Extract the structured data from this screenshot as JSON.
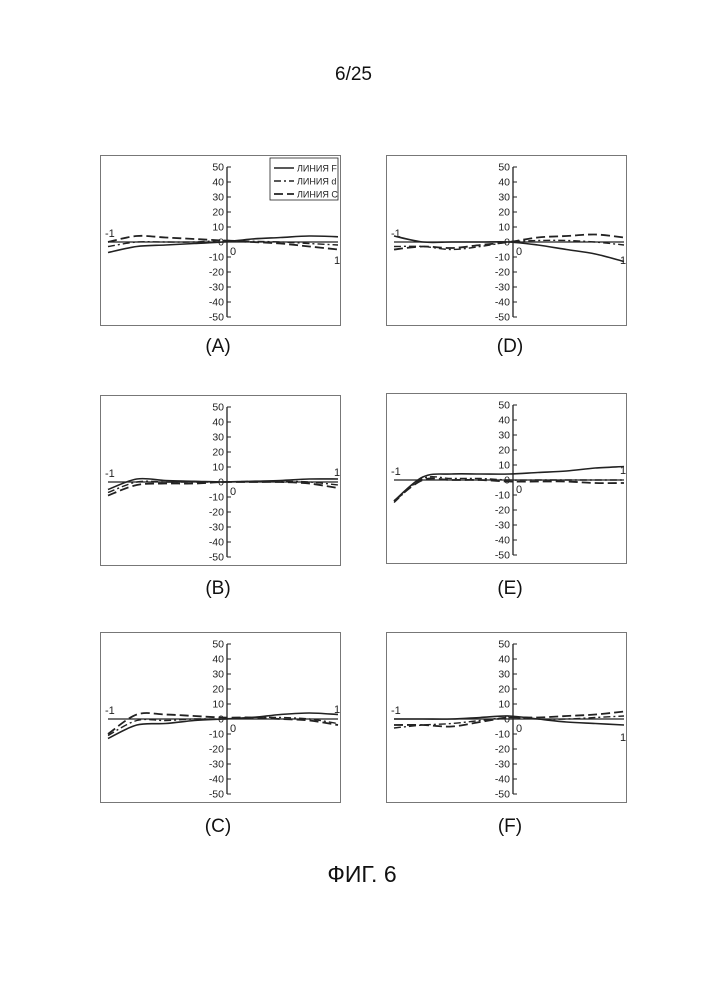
{
  "header": {
    "page_number": "6/25"
  },
  "figure": {
    "title": "ФИГ. 6"
  },
  "legend": [
    {
      "label": "ЛИНИЯ F",
      "style": "solid"
    },
    {
      "label": "ЛИНИЯ d",
      "style": "dashdot"
    },
    {
      "label": "ЛИНИЯ C",
      "style": "dashed"
    }
  ],
  "colors": {
    "ink": "#222222",
    "frame": "#777777",
    "paper": "#ffffff"
  },
  "chart_data": [
    {
      "panel": "A",
      "caption": "(A)",
      "type": "line",
      "xlim": [
        -1,
        1
      ],
      "ylim": [
        -50,
        50
      ],
      "y_ticks": [
        50,
        40,
        30,
        20,
        10,
        0,
        -10,
        -20,
        -30,
        -40,
        -50
      ],
      "x_tick_labels": [
        "-1",
        "0",
        "1"
      ],
      "legend_position": "top-right",
      "x": [
        -1,
        -0.75,
        -0.5,
        -0.25,
        0,
        0.25,
        0.5,
        0.75,
        1
      ],
      "series": [
        {
          "name": "ЛИНИЯ F",
          "values": [
            -7,
            -3,
            -2,
            -1,
            0,
            2,
            3,
            4,
            3.5
          ]
        },
        {
          "name": "ЛИНИЯ d",
          "values": [
            -3,
            0,
            0,
            0,
            1,
            0.5,
            0,
            -1,
            -2
          ]
        },
        {
          "name": "ЛИНИЯ C",
          "values": [
            0,
            4,
            3,
            2,
            1,
            0,
            -1,
            -3,
            -5
          ]
        }
      ]
    },
    {
      "panel": "D",
      "caption": "(D)",
      "type": "line",
      "xlim": [
        -1,
        1
      ],
      "ylim": [
        -50,
        50
      ],
      "y_ticks": [
        50,
        40,
        30,
        20,
        10,
        0,
        -10,
        -20,
        -30,
        -40,
        -50
      ],
      "x_tick_labels": [
        "-1",
        "0",
        "1"
      ],
      "x": [
        -1,
        -0.75,
        -0.5,
        -0.25,
        0,
        0.25,
        0.5,
        0.75,
        1
      ],
      "series": [
        {
          "name": "ЛИНИЯ F",
          "values": [
            4,
            0,
            0,
            0,
            0,
            -2,
            -5,
            -8,
            -13
          ]
        },
        {
          "name": "ЛИНИЯ d",
          "values": [
            -3,
            -3,
            -5,
            -3,
            0,
            1,
            1,
            0,
            -2
          ]
        },
        {
          "name": "ЛИНИЯ C",
          "values": [
            -5,
            -3,
            -4,
            -2,
            0,
            3,
            4,
            5,
            3
          ]
        }
      ]
    },
    {
      "panel": "B",
      "caption": "(B)",
      "type": "line",
      "xlim": [
        -1,
        1
      ],
      "ylim": [
        -50,
        50
      ],
      "y_ticks": [
        50,
        40,
        30,
        20,
        10,
        0,
        -10,
        -20,
        -30,
        -40,
        -50
      ],
      "x_tick_labels": [
        "-1",
        "0",
        "1"
      ],
      "x": [
        -1,
        -0.75,
        -0.5,
        -0.25,
        0,
        0.25,
        0.5,
        0.75,
        1
      ],
      "series": [
        {
          "name": "ЛИНИЯ F",
          "values": [
            -5,
            2,
            1,
            0.5,
            0,
            0.5,
            1,
            2,
            2
          ]
        },
        {
          "name": "ЛИНИЯ d",
          "values": [
            -7,
            0,
            0,
            0,
            0,
            0.5,
            0.5,
            0,
            -2
          ]
        },
        {
          "name": "ЛИНИЯ C",
          "values": [
            -9,
            -2,
            -1,
            -1,
            0,
            0,
            0,
            -1,
            -4
          ]
        }
      ]
    },
    {
      "panel": "E",
      "caption": "(E)",
      "type": "line",
      "xlim": [
        -1,
        1
      ],
      "ylim": [
        -50,
        50
      ],
      "y_ticks": [
        50,
        40,
        30,
        20,
        10,
        0,
        -10,
        -20,
        -30,
        -40,
        -50
      ],
      "x_tick_labels": [
        "-1",
        "0",
        "1"
      ],
      "x": [
        -1,
        -0.75,
        -0.5,
        -0.25,
        0,
        0.25,
        0.5,
        0.75,
        1
      ],
      "series": [
        {
          "name": "ЛИНИЯ F",
          "values": [
            -14,
            2,
            4,
            4,
            4,
            5,
            6,
            8,
            9
          ]
        },
        {
          "name": "ЛИНИЯ d",
          "values": [
            -15,
            1,
            1,
            1,
            0,
            0,
            0,
            0,
            0
          ]
        },
        {
          "name": "ЛИНИЯ C",
          "values": [
            -14,
            0,
            0,
            0,
            -1,
            -1,
            -1,
            -2,
            -2
          ]
        }
      ]
    },
    {
      "panel": "C",
      "caption": "(C)",
      "type": "line",
      "xlim": [
        -1,
        1
      ],
      "ylim": [
        -50,
        50
      ],
      "y_ticks": [
        50,
        40,
        30,
        20,
        10,
        0,
        -10,
        -20,
        -30,
        -40,
        -50
      ],
      "x_tick_labels": [
        "-1",
        "0",
        "1"
      ],
      "x": [
        -1,
        -0.75,
        -0.5,
        -0.25,
        0,
        0.25,
        0.5,
        0.75,
        1
      ],
      "series": [
        {
          "name": "ЛИНИЯ F",
          "values": [
            -13,
            -4,
            -3,
            -1,
            0,
            1,
            3,
            4,
            3
          ]
        },
        {
          "name": "ЛИНИЯ d",
          "values": [
            -11,
            -1,
            -1,
            0,
            0,
            1,
            1,
            0,
            -3
          ]
        },
        {
          "name": "ЛИНИЯ C",
          "values": [
            -10,
            3,
            3,
            2,
            1,
            1,
            0,
            -1,
            -4
          ]
        }
      ]
    },
    {
      "panel": "F",
      "caption": "(F)",
      "type": "line",
      "xlim": [
        -1,
        1
      ],
      "ylim": [
        -50,
        50
      ],
      "y_ticks": [
        50,
        40,
        30,
        20,
        10,
        0,
        -10,
        -20,
        -30,
        -40,
        -50
      ],
      "x_tick_labels": [
        "-1",
        "0",
        "1"
      ],
      "x": [
        -1,
        -0.75,
        -0.5,
        -0.25,
        0,
        0.25,
        0.5,
        0.75,
        1
      ],
      "series": [
        {
          "name": "ЛИНИЯ F",
          "values": [
            0,
            0,
            0,
            1,
            2,
            0,
            -2,
            -3,
            -4
          ]
        },
        {
          "name": "ЛИНИЯ d",
          "values": [
            -6,
            -4,
            -3,
            -1,
            1,
            0,
            0,
            1,
            2
          ]
        },
        {
          "name": "ЛИНИЯ C",
          "values": [
            -4,
            -4,
            -5,
            -2,
            1,
            1,
            2,
            3,
            5
          ]
        }
      ]
    }
  ]
}
